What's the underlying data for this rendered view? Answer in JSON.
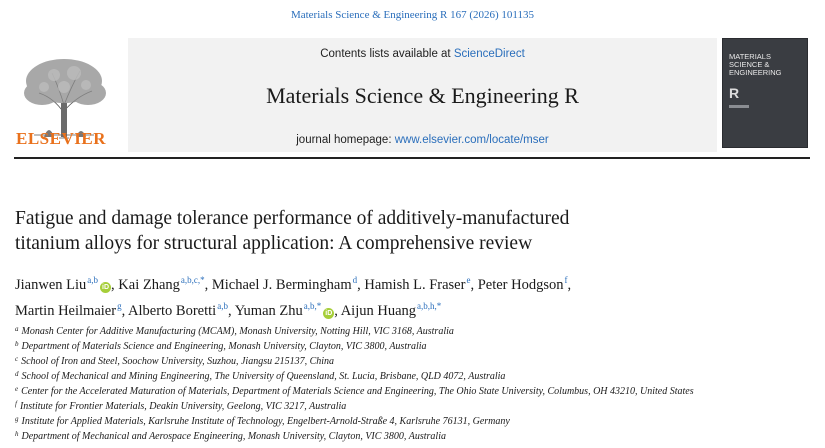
{
  "citation": "Materials Science & Engineering R 167 (2026) 101135",
  "masthead": {
    "publisher_logo_text": "ELSEVIER",
    "contents_prefix": "Contents lists available at ",
    "contents_link": "ScienceDirect",
    "journal_title": "Materials Science & Engineering R",
    "homepage_prefix": "journal homepage: ",
    "homepage_link": "www.elsevier.com/locate/mser",
    "cover_title_lines": [
      "MATERIALS",
      "SCIENCE &",
      "ENGINEERING"
    ],
    "cover_letter": "R"
  },
  "article": {
    "title_line1": "Fatigue and damage tolerance performance of additively-manufactured",
    "title_line2": "titanium alloys for structural application: A comprehensive review"
  },
  "authors": [
    {
      "name": "Jianwen Liu",
      "sup": "a,b",
      "orcid": true
    },
    {
      "name": "Kai Zhang",
      "sup": "a,b,c,*",
      "orcid": false
    },
    {
      "name": "Michael J. Bermingham",
      "sup": "d",
      "orcid": false
    },
    {
      "name": "Hamish L. Fraser",
      "sup": "e",
      "orcid": false
    },
    {
      "name": "Peter Hodgson",
      "sup": "f",
      "orcid": false
    },
    {
      "name": "Martin Heilmaier",
      "sup": "g",
      "orcid": false
    },
    {
      "name": "Alberto Boretti",
      "sup": "a,b",
      "orcid": false
    },
    {
      "name": "Yuman Zhu",
      "sup": "a,b,*",
      "orcid": true
    },
    {
      "name": "Aijun Huang",
      "sup": "a,b,h,*",
      "orcid": false
    }
  ],
  "affiliations": [
    {
      "key": "a",
      "text": "Monash Center for Additive Manufacturing (MCAM), Monash University, Notting Hill, VIC 3168, Australia"
    },
    {
      "key": "b",
      "text": "Department of Materials Science and Engineering, Monash University, Clayton, VIC 3800, Australia"
    },
    {
      "key": "c",
      "text": "School of Iron and Steel, Soochow University, Suzhou, Jiangsu 215137, China"
    },
    {
      "key": "d",
      "text": "School of Mechanical and Mining Engineering, The University of Queensland, St. Lucia, Brisbane, QLD 4072, Australia"
    },
    {
      "key": "e",
      "text": "Center for the Accelerated Maturation of Materials, Department of Materials Science and Engineering, The Ohio State University, Columbus, OH 43210, United States"
    },
    {
      "key": "f",
      "text": "Institute for Frontier Materials, Deakin University, Geelong, VIC 3217, Australia"
    },
    {
      "key": "g",
      "text": "Institute for Applied Materials, Karlsruhe Institute of Technology, Engelbert-Arnold-Straße 4, Karlsruhe 76131, Germany"
    },
    {
      "key": "h",
      "text": "Department of Mechanical and Aerospace Engineering, Monash University, Clayton, VIC 3800, Australia"
    }
  ],
  "colors": {
    "link": "#2a6ebb",
    "elsevier_orange": "#e9711c",
    "orcid_green": "#a6ce39"
  },
  "icons": {
    "orcid": "orcid-icon",
    "publisher": "elsevier-tree-logo"
  }
}
